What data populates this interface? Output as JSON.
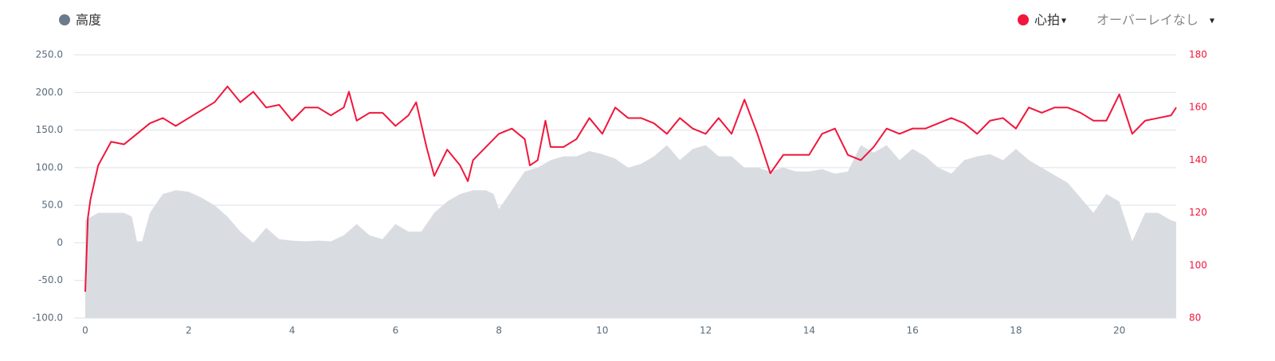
{
  "chart_data": {
    "type": "combo",
    "legend": {
      "left": "高度",
      "right": "心拍",
      "overlay": "オーバーレイなし"
    },
    "xlim": [
      0,
      21.1
    ],
    "xticks": [
      0,
      2,
      4,
      6,
      8,
      10,
      12,
      14,
      16,
      18,
      20
    ],
    "ylim": [
      -100,
      250
    ],
    "yticks": [
      {
        "value": -100,
        "label": "-100.0"
      },
      {
        "value": -50,
        "label": "-50.0"
      },
      0,
      {
        "value": 50,
        "label": "50.0"
      },
      {
        "value": 100,
        "label": "100.0"
      },
      {
        "value": 150,
        "label": "150.0"
      },
      {
        "value": 200,
        "label": "200.0"
      },
      {
        "value": 250,
        "label": "250.0"
      }
    ],
    "y2lim": [
      80,
      180
    ],
    "y2ticks": [
      80,
      100,
      120,
      140,
      160,
      180
    ],
    "grid": true,
    "series": [
      {
        "name": "高度",
        "type": "area",
        "color": "#d9dde1",
        "legend_color": "#6b7b8b",
        "x": [
          0,
          0.25,
          0.5,
          0.75,
          0.9,
          1.0,
          1.1,
          1.25,
          1.5,
          1.75,
          2.0,
          2.25,
          2.5,
          2.75,
          3.0,
          3.25,
          3.5,
          3.75,
          4.0,
          4.25,
          4.5,
          4.75,
          5.0,
          5.25,
          5.5,
          5.75,
          6.0,
          6.25,
          6.5,
          6.75,
          7.0,
          7.25,
          7.5,
          7.75,
          7.9,
          8.0,
          8.25,
          8.5,
          8.75,
          9.0,
          9.25,
          9.5,
          9.75,
          10.0,
          10.25,
          10.5,
          10.75,
          11.0,
          11.25,
          11.5,
          11.75,
          12.0,
          12.25,
          12.5,
          12.75,
          13.0,
          13.25,
          13.5,
          13.75,
          14.0,
          14.25,
          14.5,
          14.75,
          15.0,
          15.25,
          15.5,
          15.75,
          16.0,
          16.25,
          16.5,
          16.75,
          17.0,
          17.25,
          17.5,
          17.75,
          18.0,
          18.25,
          18.5,
          18.75,
          19.0,
          19.25,
          19.5,
          19.75,
          20.0,
          20.25,
          20.5,
          20.75,
          21.0,
          21.1
        ],
        "values": [
          30,
          40,
          40,
          40,
          35,
          2,
          2,
          40,
          65,
          70,
          68,
          60,
          50,
          35,
          15,
          0,
          20,
          5,
          3,
          2,
          3,
          2,
          10,
          25,
          10,
          5,
          25,
          15,
          15,
          40,
          55,
          65,
          70,
          70,
          65,
          45,
          70,
          95,
          100,
          110,
          115,
          115,
          122,
          118,
          112,
          100,
          105,
          115,
          130,
          110,
          125,
          130,
          115,
          115,
          100,
          100,
          95,
          100,
          95,
          95,
          98,
          92,
          95,
          130,
          120,
          130,
          110,
          125,
          115,
          100,
          92,
          110,
          115,
          118,
          110,
          125,
          110,
          100,
          90,
          80,
          60,
          40,
          65,
          55,
          2,
          40,
          40,
          30,
          28
        ]
      },
      {
        "name": "心拍",
        "type": "line",
        "axis": "y2",
        "color": "#f0173c",
        "x": [
          0,
          0.05,
          0.1,
          0.25,
          0.5,
          0.75,
          1.0,
          1.25,
          1.5,
          1.75,
          2.0,
          2.25,
          2.5,
          2.75,
          3.0,
          3.25,
          3.5,
          3.75,
          4.0,
          4.25,
          4.5,
          4.75,
          5.0,
          5.1,
          5.25,
          5.5,
          5.75,
          6.0,
          6.25,
          6.4,
          6.6,
          6.75,
          7.0,
          7.25,
          7.4,
          7.5,
          7.75,
          8.0,
          8.25,
          8.5,
          8.6,
          8.75,
          8.9,
          9.0,
          9.25,
          9.5,
          9.75,
          10.0,
          10.25,
          10.5,
          10.75,
          11.0,
          11.25,
          11.5,
          11.75,
          12.0,
          12.25,
          12.5,
          12.75,
          13.0,
          13.25,
          13.5,
          13.75,
          14.0,
          14.25,
          14.5,
          14.75,
          15.0,
          15.25,
          15.5,
          15.75,
          16.0,
          16.25,
          16.5,
          16.75,
          17.0,
          17.25,
          17.5,
          17.75,
          18.0,
          18.25,
          18.5,
          18.75,
          19.0,
          19.25,
          19.5,
          19.75,
          20.0,
          20.25,
          20.5,
          20.75,
          21.0,
          21.1
        ],
        "values": [
          90,
          118,
          125,
          138,
          147,
          146,
          150,
          154,
          156,
          153,
          156,
          159,
          162,
          168,
          162,
          166,
          160,
          161,
          155,
          160,
          160,
          157,
          160,
          166,
          155,
          158,
          158,
          153,
          157,
          162,
          145,
          134,
          144,
          138,
          132,
          140,
          145,
          150,
          152,
          148,
          138,
          140,
          155,
          145,
          145,
          148,
          156,
          150,
          160,
          156,
          156,
          154,
          150,
          156,
          152,
          150,
          156,
          150,
          163,
          150,
          135,
          142,
          142,
          142,
          150,
          152,
          142,
          140,
          145,
          152,
          150,
          152,
          152,
          154,
          156,
          154,
          150,
          155,
          156,
          152,
          160,
          158,
          160,
          160,
          158,
          155,
          155,
          165,
          150,
          155,
          156,
          157,
          160
        ]
      }
    ]
  }
}
